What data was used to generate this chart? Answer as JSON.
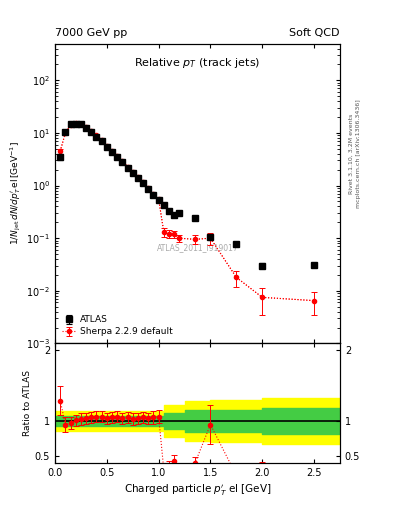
{
  "title_left": "7000 GeV pp",
  "title_right": "Soft QCD",
  "plot_title": "Relative $p_T$ (track jets)",
  "ylabel_main": "$1/N_\\mathrm{jet}\\,dN/dp^{\\prime}_{T}\\,\\mathrm{el}\\,[\\mathrm{GeV}^{-1}]$",
  "ylabel_ratio": "Ratio to ATLAS",
  "xlabel": "Charged particle $p^{\\prime}_{T}$ el [GeV]",
  "right_label1": "Rivet 3.1.10, 3.2M events",
  "right_label2": "mcplots.cern.ch [arXiv:1306.3436]",
  "watermark": "ATLAS_2011_I919017",
  "atlas_x": [
    0.05,
    0.1,
    0.15,
    0.2,
    0.25,
    0.3,
    0.35,
    0.4,
    0.45,
    0.5,
    0.55,
    0.6,
    0.65,
    0.7,
    0.75,
    0.8,
    0.85,
    0.9,
    0.95,
    1.0,
    1.05,
    1.1,
    1.15,
    1.2,
    1.35,
    1.5,
    1.75,
    2.0,
    2.5
  ],
  "atlas_y": [
    3.5,
    10.5,
    14.5,
    15.0,
    14.5,
    12.5,
    10.5,
    8.5,
    7.0,
    5.5,
    4.4,
    3.5,
    2.8,
    2.2,
    1.75,
    1.4,
    1.1,
    0.85,
    0.65,
    0.52,
    0.42,
    0.33,
    0.27,
    0.3,
    0.24,
    0.105,
    0.077,
    0.03,
    0.031
  ],
  "atlas_yerr": [
    0.4,
    0.8,
    1.0,
    1.0,
    1.0,
    0.9,
    0.8,
    0.6,
    0.5,
    0.4,
    0.32,
    0.25,
    0.2,
    0.16,
    0.13,
    0.1,
    0.08,
    0.06,
    0.05,
    0.04,
    0.03,
    0.025,
    0.02,
    0.02,
    0.015,
    0.008,
    0.006,
    0.003,
    0.003
  ],
  "sherpa_x": [
    0.05,
    0.1,
    0.15,
    0.2,
    0.25,
    0.3,
    0.35,
    0.4,
    0.45,
    0.5,
    0.55,
    0.6,
    0.65,
    0.7,
    0.75,
    0.8,
    0.85,
    0.9,
    0.95,
    1.0,
    1.05,
    1.1,
    1.15,
    1.2,
    1.35,
    1.5,
    1.75,
    2.0,
    2.5
  ],
  "sherpa_y": [
    4.5,
    10.0,
    14.0,
    15.2,
    15.0,
    13.0,
    11.0,
    9.0,
    7.4,
    5.7,
    4.6,
    3.7,
    2.9,
    2.3,
    1.8,
    1.45,
    1.15,
    0.88,
    0.68,
    0.55,
    0.13,
    0.12,
    0.12,
    0.1,
    0.095,
    0.1,
    0.018,
    0.0075,
    0.0065
  ],
  "sherpa_yerr": [
    0.5,
    0.8,
    1.0,
    1.1,
    1.0,
    0.9,
    0.8,
    0.65,
    0.55,
    0.42,
    0.33,
    0.26,
    0.21,
    0.17,
    0.13,
    0.11,
    0.085,
    0.065,
    0.05,
    0.04,
    0.025,
    0.02,
    0.018,
    0.015,
    0.018,
    0.025,
    0.006,
    0.004,
    0.003
  ],
  "ratio_x": [
    0.05,
    0.1,
    0.15,
    0.2,
    0.25,
    0.3,
    0.35,
    0.4,
    0.45,
    0.5,
    0.55,
    0.6,
    0.65,
    0.7,
    0.75,
    0.8,
    0.85,
    0.9,
    0.95,
    1.0,
    1.05,
    1.1,
    1.15,
    1.2,
    1.35,
    1.5,
    1.75,
    2.0,
    2.5
  ],
  "ratio_y": [
    1.29,
    0.95,
    0.97,
    1.01,
    1.03,
    1.04,
    1.05,
    1.06,
    1.06,
    1.04,
    1.05,
    1.06,
    1.04,
    1.05,
    1.03,
    1.04,
    1.05,
    1.04,
    1.05,
    1.06,
    0.31,
    0.36,
    0.44,
    0.33,
    0.4,
    0.95,
    0.23,
    0.25,
    0.21
  ],
  "ratio_yerr": [
    0.2,
    0.1,
    0.09,
    0.08,
    0.08,
    0.08,
    0.08,
    0.08,
    0.08,
    0.08,
    0.08,
    0.08,
    0.08,
    0.08,
    0.08,
    0.08,
    0.08,
    0.08,
    0.09,
    0.09,
    0.07,
    0.07,
    0.08,
    0.07,
    0.09,
    0.28,
    0.09,
    0.17,
    0.12
  ],
  "green_band_x": [
    0.0,
    0.05,
    0.15,
    0.25,
    0.35,
    0.45,
    0.55,
    0.65,
    0.75,
    0.85,
    0.95,
    1.05,
    1.25,
    1.5,
    2.0,
    2.5,
    2.8
  ],
  "green_band_lo": [
    0.93,
    0.93,
    0.93,
    0.93,
    0.93,
    0.93,
    0.93,
    0.93,
    0.93,
    0.93,
    0.93,
    0.88,
    0.85,
    0.84,
    0.82,
    0.82,
    0.82
  ],
  "green_band_hi": [
    1.07,
    1.07,
    1.07,
    1.07,
    1.07,
    1.07,
    1.07,
    1.07,
    1.07,
    1.07,
    1.07,
    1.12,
    1.15,
    1.16,
    1.18,
    1.18,
    1.18
  ],
  "yellow_band_lo": [
    0.86,
    0.86,
    0.86,
    0.86,
    0.86,
    0.86,
    0.86,
    0.86,
    0.86,
    0.86,
    0.86,
    0.78,
    0.72,
    0.7,
    0.67,
    0.67,
    0.67
  ],
  "yellow_band_hi": [
    1.14,
    1.14,
    1.14,
    1.14,
    1.14,
    1.14,
    1.14,
    1.14,
    1.14,
    1.14,
    1.14,
    1.22,
    1.28,
    1.3,
    1.33,
    1.33,
    1.33
  ],
  "xlim": [
    0.0,
    2.75
  ],
  "ylim_main": [
    0.001,
    500.0
  ],
  "ylim_ratio": [
    0.4,
    2.1
  ]
}
